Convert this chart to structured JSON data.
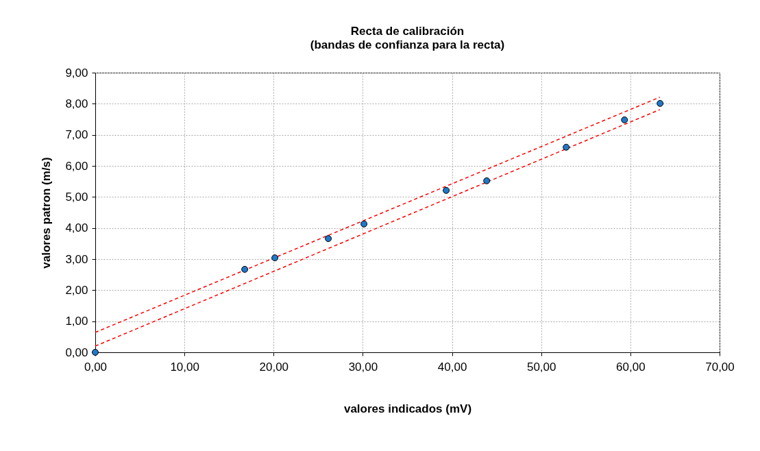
{
  "chart_data": {
    "type": "scatter",
    "title": "Recta de calibración",
    "subtitle": "(bandas de confianza para la recta)",
    "xlabel": "valores indicados  (mV)",
    "ylabel": "valores patron  (m/s)",
    "xlim": [
      0,
      70
    ],
    "ylim": [
      0,
      9
    ],
    "xticks": [
      {
        "value": 0,
        "label": "0,00"
      },
      {
        "value": 10,
        "label": "10,00"
      },
      {
        "value": 20,
        "label": "20,00"
      },
      {
        "value": 30,
        "label": "30,00"
      },
      {
        "value": 40,
        "label": "40,00"
      },
      {
        "value": 50,
        "label": "50,00"
      },
      {
        "value": 60,
        "label": "60,00"
      },
      {
        "value": 70,
        "label": "70,00"
      }
    ],
    "yticks": [
      {
        "value": 0,
        "label": "0,00"
      },
      {
        "value": 1,
        "label": "1,00"
      },
      {
        "value": 2,
        "label": "2,00"
      },
      {
        "value": 3,
        "label": "3,00"
      },
      {
        "value": 4,
        "label": "4,00"
      },
      {
        "value": 5,
        "label": "5,00"
      },
      {
        "value": 6,
        "label": "6,00"
      },
      {
        "value": 7,
        "label": "7,00"
      },
      {
        "value": 8,
        "label": "8,00"
      },
      {
        "value": 9,
        "label": "9,00"
      }
    ],
    "grid": true,
    "marker": "circle",
    "series": [
      {
        "type": "line",
        "color": "#ff0000",
        "line_style": "dashed",
        "marker": "none",
        "x": [
          0,
          63.3
        ],
        "values": [
          0.64,
          8.21
        ]
      },
      {
        "type": "line",
        "color": "#ff0000",
        "line_style": "dashed",
        "marker": "none",
        "x": [
          0,
          63.3
        ],
        "values": [
          0.2,
          7.81
        ]
      },
      {
        "color": "#1f78c8",
        "x": [
          0,
          16.76,
          20.14,
          26.13,
          30.13,
          39.35,
          43.89,
          52.8,
          59.34,
          63.33
        ],
        "values": [
          0,
          2.67,
          3.04,
          3.66,
          4.13,
          5.21,
          5.52,
          6.6,
          7.48,
          8.01
        ]
      }
    ]
  }
}
